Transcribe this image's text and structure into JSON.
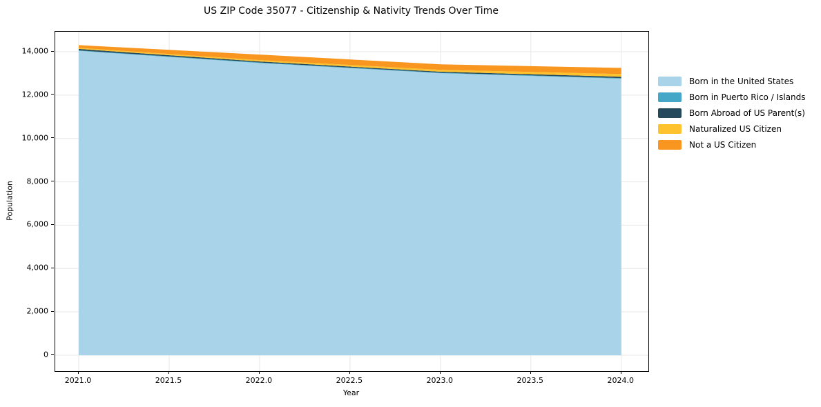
{
  "chart_data": {
    "type": "area",
    "stacked": true,
    "title": "US ZIP Code 35077 - Citizenship & Nativity Trends Over Time",
    "xlabel": "Year",
    "ylabel": "Population",
    "x": [
      2021,
      2022,
      2023,
      2024
    ],
    "series": [
      {
        "name": "Born in the United States",
        "color": "#a8d3e8",
        "values": [
          14040,
          13480,
          13010,
          12760
        ]
      },
      {
        "name": "Born in Puerto Rico / Islands",
        "color": "#44a7c7",
        "values": [
          25,
          25,
          25,
          25
        ]
      },
      {
        "name": "Born Abroad of US Parent(s)",
        "color": "#25495c",
        "values": [
          65,
          45,
          45,
          60
        ]
      },
      {
        "name": "Naturalized US Citizen",
        "color": "#fdc22e",
        "values": [
          50,
          65,
          85,
          125
        ]
      },
      {
        "name": "Not a US Citizen",
        "color": "#f8961f",
        "values": [
          125,
          255,
          255,
          285
        ]
      }
    ],
    "xlim": [
      2020.87,
      2024.15
    ],
    "ylim": [
      -732,
      14923
    ],
    "xticks": {
      "values": [
        2021.0,
        2021.5,
        2022.0,
        2022.5,
        2023.0,
        2023.5,
        2024.0
      ],
      "labels": [
        "2021.0",
        "2021.5",
        "2022.0",
        "2022.5",
        "2023.0",
        "2023.5",
        "2024.0"
      ]
    },
    "yticks": {
      "values": [
        0,
        2000,
        4000,
        6000,
        8000,
        10000,
        12000,
        14000
      ],
      "labels": [
        "0",
        "2,000",
        "4,000",
        "6,000",
        "8,000",
        "10,000",
        "12,000",
        "14,000"
      ]
    },
    "grid": true,
    "grid_color": "#e7e7e7",
    "spine_color": "#000000",
    "legend_position": "right-outside",
    "legend_frame": false
  }
}
